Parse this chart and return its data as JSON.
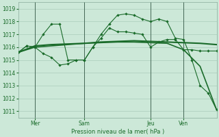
{
  "title": "",
  "xlabel": "Pression niveau de la mer( hPa )",
  "ylabel": "",
  "bg_color": "#cce8d8",
  "grid_color": "#aaccbb",
  "line_color": "#1a6b2a",
  "ylim": [
    1010.5,
    1019.5
  ],
  "yticks": [
    1011,
    1012,
    1013,
    1014,
    1015,
    1016,
    1017,
    1018,
    1019
  ],
  "xlim": [
    0,
    96
  ],
  "xtick_pos": [
    8,
    32,
    64,
    80
  ],
  "xtick_labels": [
    "Mer",
    "Sam",
    "Jeu",
    "Ven"
  ],
  "vlines_x": [
    8,
    32,
    64,
    80
  ],
  "line1_x": [
    0,
    4,
    8,
    12,
    16,
    20,
    24,
    28,
    32,
    36,
    40,
    44,
    48,
    52,
    56,
    60,
    64,
    68,
    72,
    76,
    80,
    84,
    88,
    92,
    96
  ],
  "line1_y": [
    1015.6,
    1016.1,
    1016.0,
    1015.5,
    1015.2,
    1014.6,
    1014.7,
    1015.0,
    1015.0,
    1016.0,
    1016.7,
    1017.5,
    1017.2,
    1017.2,
    1017.1,
    1017.0,
    1016.0,
    1016.4,
    1016.6,
    1016.6,
    1015.8,
    1015.8,
    1015.7,
    1015.7,
    1015.7
  ],
  "line2_x": [
    0,
    8,
    16,
    24,
    32,
    40,
    48,
    56,
    64,
    72,
    80,
    88,
    96
  ],
  "line2_y": [
    1015.6,
    1016.1,
    1016.2,
    1016.25,
    1016.3,
    1016.4,
    1016.45,
    1016.5,
    1016.45,
    1016.4,
    1016.35,
    1016.3,
    1016.2
  ],
  "line3_x": [
    0,
    4,
    8,
    12,
    16,
    20,
    24,
    28,
    32,
    36,
    40,
    44,
    48,
    52,
    56,
    60,
    64,
    68,
    72,
    76,
    80,
    84,
    88,
    92,
    96
  ],
  "line3_y": [
    1015.6,
    1016.1,
    1016.0,
    1017.0,
    1017.8,
    1017.8,
    1015.0,
    1015.0,
    1015.0,
    1016.0,
    1017.0,
    1017.8,
    1018.5,
    1018.6,
    1018.5,
    1018.2,
    1018.0,
    1018.2,
    1018.0,
    1016.7,
    1016.6,
    1015.0,
    1013.0,
    1012.4,
    1011.1
  ],
  "line4_x": [
    0,
    8,
    16,
    24,
    32,
    40,
    48,
    56,
    64,
    72,
    80,
    88,
    96
  ],
  "line4_y": [
    1015.6,
    1016.0,
    1016.1,
    1016.2,
    1016.3,
    1016.35,
    1016.4,
    1016.4,
    1016.35,
    1016.3,
    1015.8,
    1014.5,
    1011.1
  ]
}
